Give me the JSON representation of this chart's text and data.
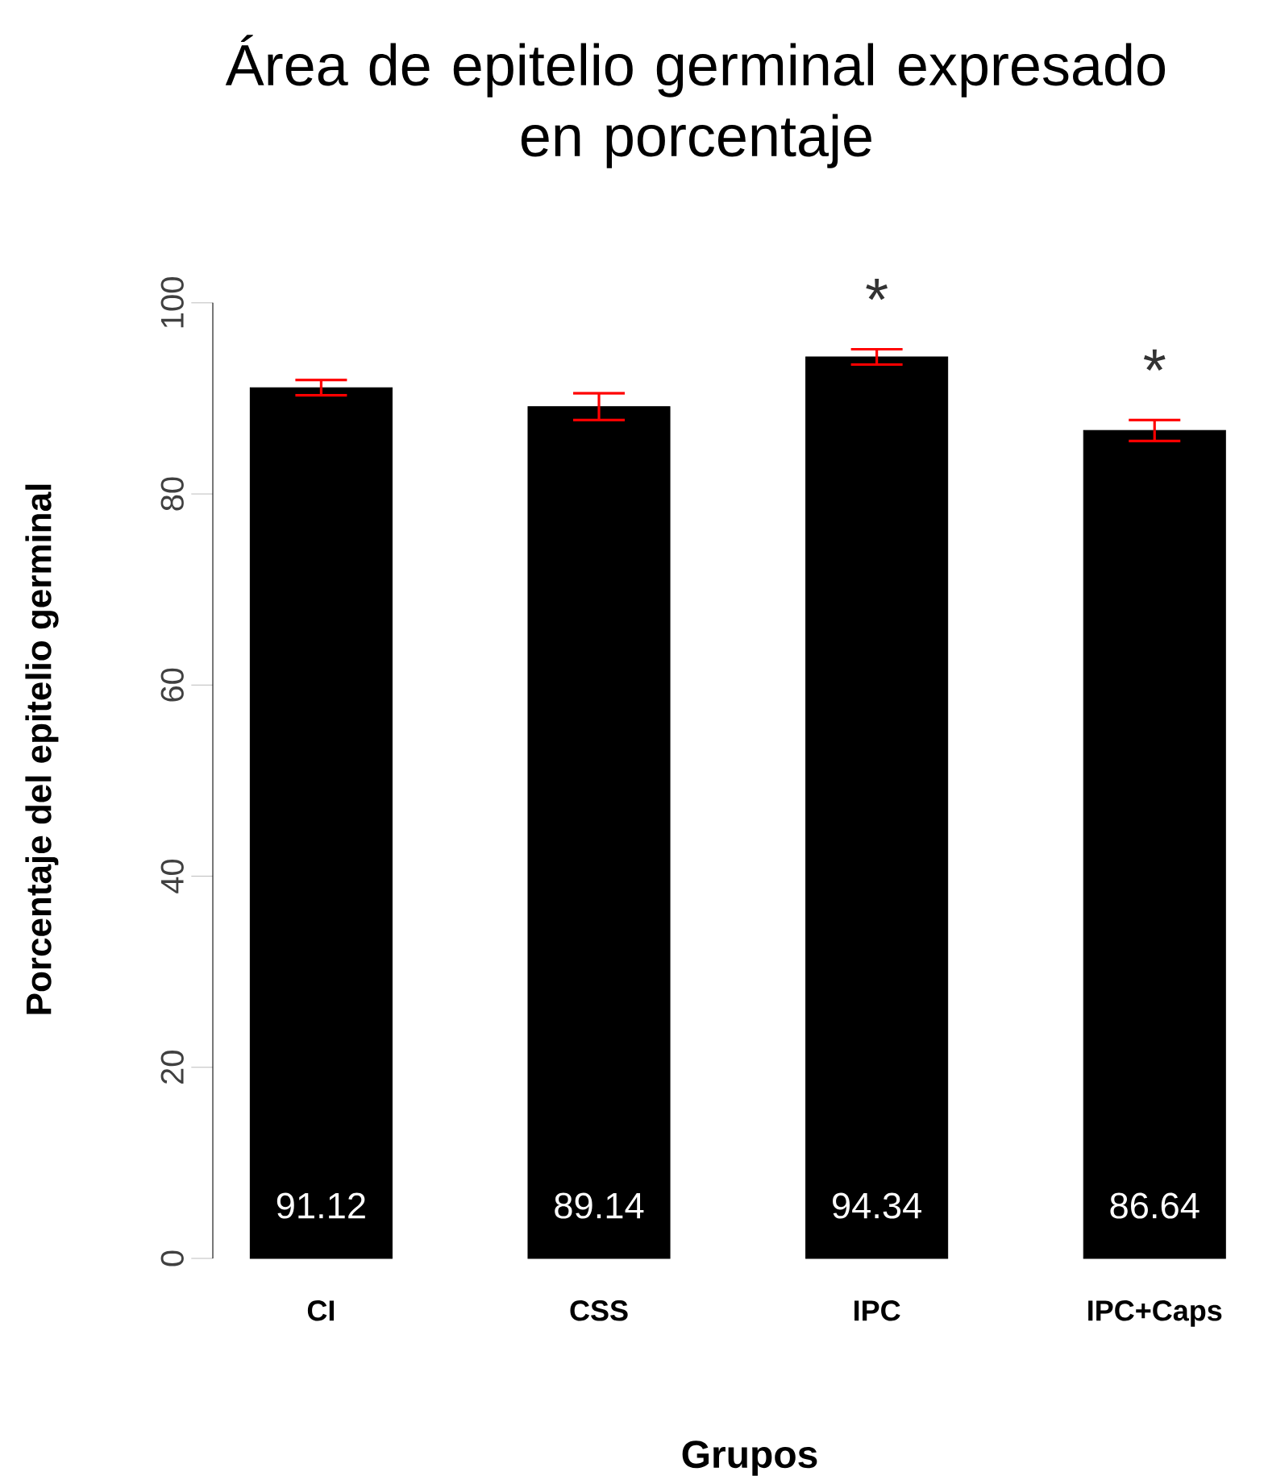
{
  "chart_data": {
    "type": "bar",
    "title": "Área de epitelio germinal expresado en porcentaje",
    "xlabel": "Grupos",
    "ylabel": "Porcentaje del epitelio germinal",
    "categories": [
      "CI",
      "CSS",
      "IPC",
      "IPC+Caps"
    ],
    "values": [
      91.12,
      89.14,
      94.34,
      86.64
    ],
    "errors": [
      0.8,
      1.4,
      0.8,
      1.1
    ],
    "color": "#000000",
    "ylim": [
      0,
      100
    ],
    "yticks": [
      0,
      20,
      40,
      60,
      80,
      100
    ],
    "data_labels": true,
    "grid": false,
    "annotations": [
      {
        "text": "*",
        "x": "IPC",
        "y": 94.34
      },
      {
        "text": "*",
        "x": "IPC+Caps",
        "y": 86.64
      }
    ]
  }
}
